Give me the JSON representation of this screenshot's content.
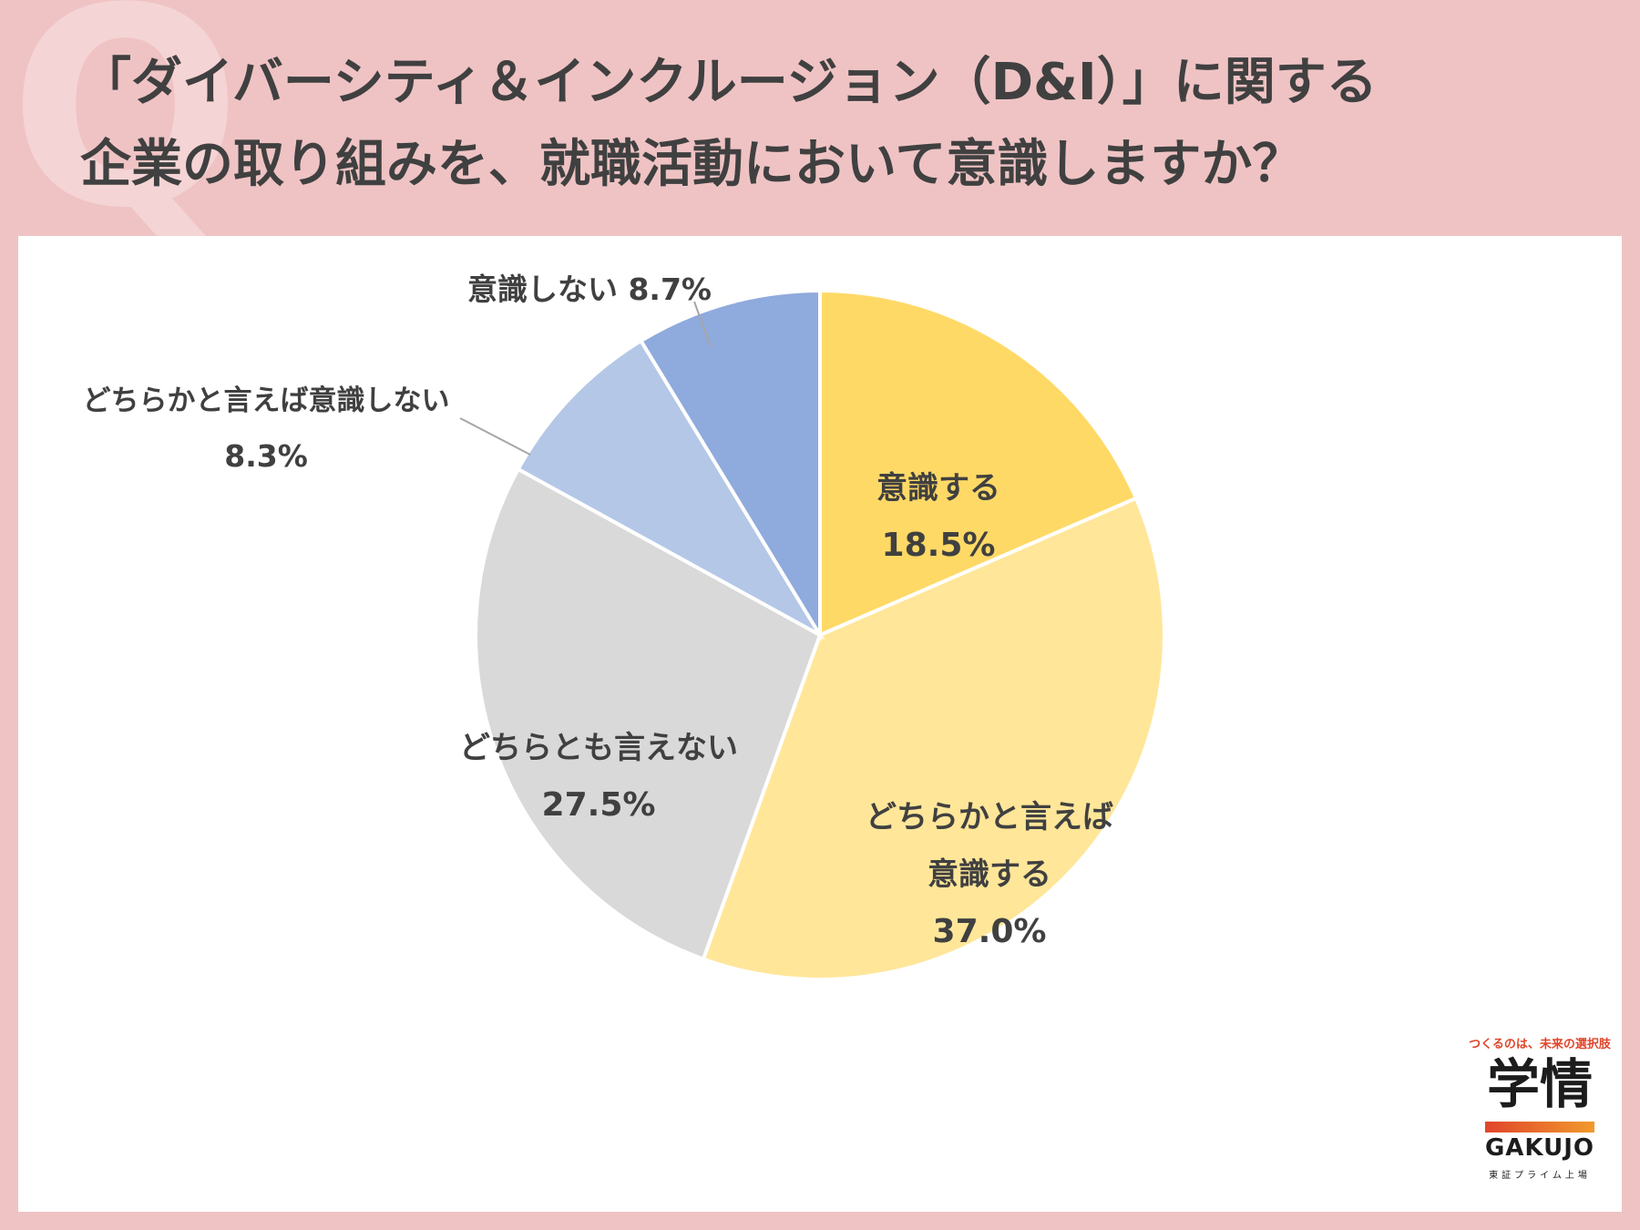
{
  "title": {
    "line1": "「ダイバーシティ＆インクルージョン（D&I）」に関する",
    "line2": "企業の取り組みを、就職活動において意識しますか？"
  },
  "chart_data": {
    "type": "pie",
    "start_angle_deg": 0,
    "direction": "clockwise",
    "slices": [
      {
        "label": "意識する",
        "value": 18.5,
        "value_text": "18.5%",
        "color": "#ffd966"
      },
      {
        "label": "どちらかと言えば意識する",
        "value": 37.0,
        "value_text": "37.0%",
        "color": "#ffe699"
      },
      {
        "label": "どちらとも言えない",
        "value": 27.5,
        "value_text": "27.5%",
        "color": "#d9d9d9"
      },
      {
        "label": "どちらかと言えば意識しない",
        "value": 8.3,
        "value_text": "8.3%",
        "color": "#b4c7e7"
      },
      {
        "label": "意識しない",
        "value": 8.7,
        "value_text": "8.7%",
        "color": "#8faadc"
      }
    ]
  },
  "labels": {
    "s0": {
      "line1": "意識する",
      "line2": "18.5%"
    },
    "s1": {
      "line1": "どちらかと言えば",
      "line2": "意識する",
      "line3": "37.0%"
    },
    "s2": {
      "line1": "どちらとも言えない",
      "line2": "27.5%"
    },
    "s3": {
      "line1": "どちらかと言えば意識しない",
      "line2": "8.3%"
    },
    "s4": {
      "line1": "意識しない 8.7%"
    }
  },
  "logo": {
    "tagline": "つくるのは、未来の選択肢",
    "name": "学情",
    "english": "GAKUJO",
    "sub": "東証プライム上場"
  }
}
